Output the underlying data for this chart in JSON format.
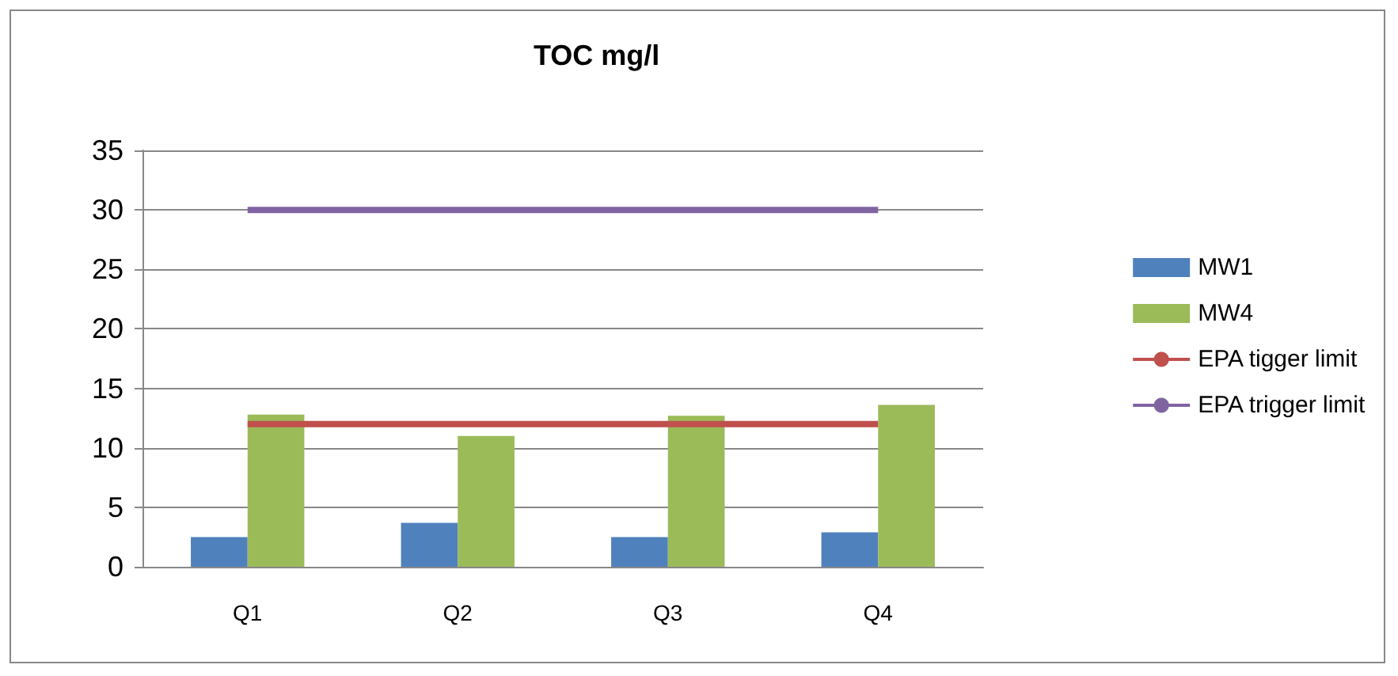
{
  "chart_data": {
    "type": "bar",
    "title": "TOC mg/l",
    "categories": [
      "Q1",
      "Q2",
      "Q3",
      "Q4"
    ],
    "series": [
      {
        "name": "MW1",
        "color": "#4f81bd",
        "values": [
          2.5,
          3.7,
          2.5,
          2.9
        ]
      },
      {
        "name": "MW4",
        "color": "#9bbb59",
        "values": [
          12.8,
          11.0,
          12.7,
          13.6
        ]
      },
      {
        "name": "EPA tigger limit",
        "type": "line",
        "color": "#c0504d",
        "values": [
          12,
          12,
          12,
          12
        ]
      },
      {
        "name": "EPA trigger limit",
        "type": "line",
        "color": "#8064a2",
        "values": [
          30,
          30,
          30,
          30
        ]
      }
    ],
    "ylim": [
      0,
      35
    ],
    "yticks": [
      0,
      5,
      10,
      15,
      20,
      25,
      30,
      35
    ],
    "grid": "y",
    "legend": "right",
    "marker": "none"
  }
}
